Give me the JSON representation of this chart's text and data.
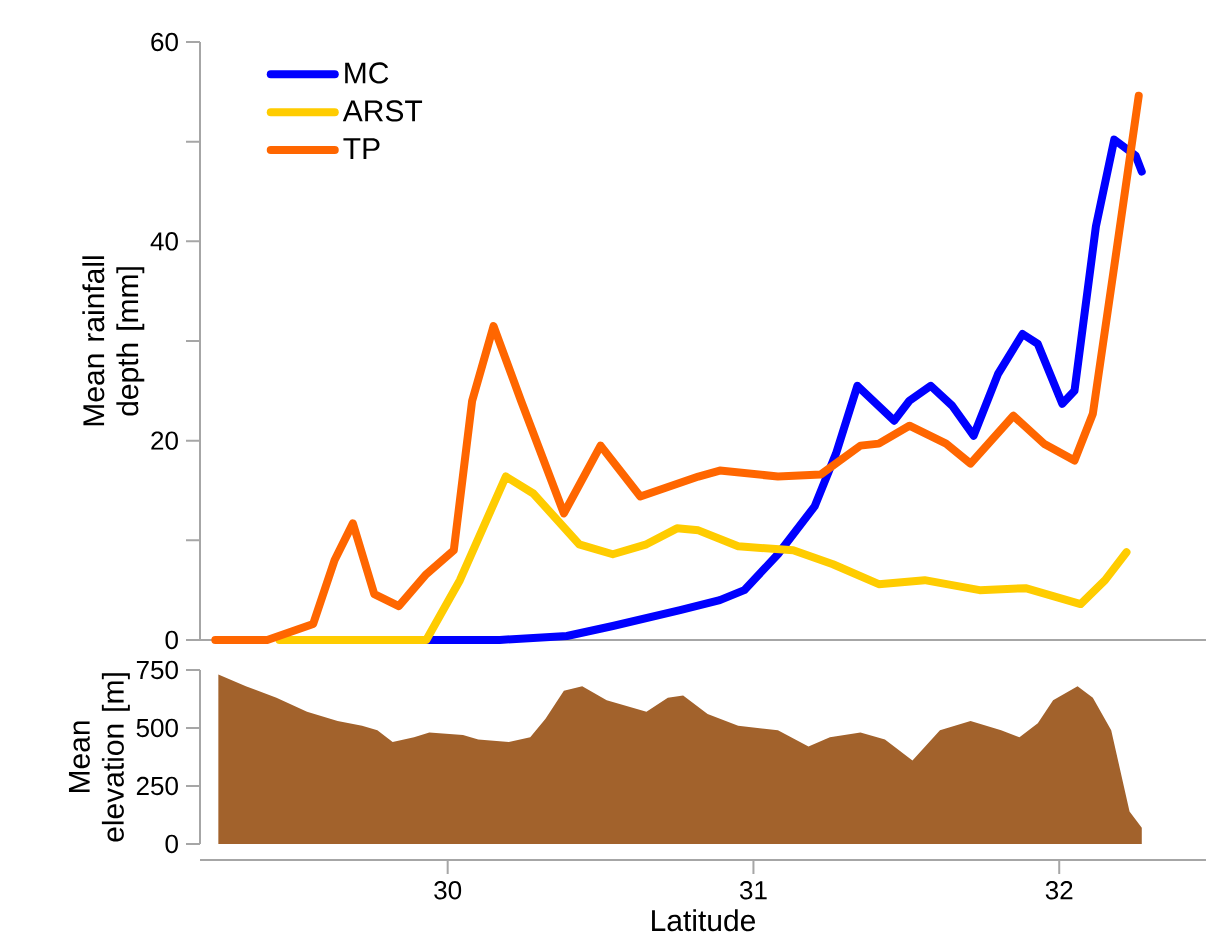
{
  "chart_data": [
    {
      "type": "line",
      "ylabel": "Mean rainfall depth [mm]",
      "xlim": [
        29.19,
        32.48
      ],
      "ylim": [
        0,
        60
      ],
      "yticks": [
        0,
        {
          "value": 10,
          "label": null
        },
        20,
        {
          "value": 30,
          "label": null
        },
        40,
        {
          "value": 50,
          "label": null
        },
        60
      ],
      "tick_labels": "y",
      "legend": "top left",
      "line_style": "solid",
      "series": [
        {
          "name": "MC",
          "color": "#0000ff",
          "x": [
            29.57,
            30.17,
            30.39,
            30.54,
            30.76,
            30.89,
            30.97,
            31.08,
            31.2,
            31.27,
            31.34,
            31.46,
            31.51,
            31.58,
            31.65,
            31.72,
            31.8,
            31.88,
            31.93,
            32.01,
            32.05,
            32.12,
            32.18,
            32.25,
            32.27
          ],
          "values": [
            0,
            0,
            0.4,
            1.4,
            3,
            4,
            5,
            8.6,
            13.4,
            18.7,
            25.5,
            22,
            24,
            25.5,
            23.5,
            20.5,
            26.7,
            30.7,
            29.7,
            23.7,
            25,
            41.5,
            50.2,
            48.6,
            47
          ]
        },
        {
          "name": "ARST",
          "color": "#ffcc00",
          "x": [
            29.45,
            29.93,
            30.04,
            30.19,
            30.28,
            30.43,
            30.54,
            30.65,
            30.75,
            30.82,
            30.95,
            31.13,
            31.26,
            31.41,
            31.56,
            31.74,
            31.89,
            32.07,
            32.15,
            32.22
          ],
          "values": [
            0,
            0,
            6,
            16.4,
            14.7,
            9.6,
            8.6,
            9.6,
            11.2,
            11,
            9.4,
            9,
            7.6,
            5.6,
            6,
            5,
            5.2,
            3.6,
            6,
            8.8
          ]
        },
        {
          "name": "TP",
          "color": "#ff6600",
          "x": [
            29.24,
            29.41,
            29.56,
            29.63,
            29.69,
            29.76,
            29.84,
            29.93,
            30.02,
            30.08,
            30.15,
            30.24,
            30.38,
            30.5,
            30.63,
            30.82,
            30.89,
            31.08,
            31.22,
            31.35,
            31.41,
            31.51,
            31.63,
            31.71,
            31.85,
            31.95,
            32.05,
            32.11,
            32.18,
            32.26
          ],
          "values": [
            0,
            0,
            1.6,
            8,
            11.7,
            4.6,
            3.4,
            6.6,
            9,
            24,
            31.5,
            24,
            12.7,
            19.5,
            14.4,
            16.4,
            17,
            16.4,
            16.6,
            19.5,
            19.7,
            21.5,
            19.7,
            17.7,
            22.5,
            19.7,
            18,
            22.7,
            37.5,
            54.6
          ]
        }
      ]
    },
    {
      "type": "area",
      "ylabel": "Mean elevation [m]",
      "xlabel": "Latitude",
      "xlim": [
        29.19,
        32.48
      ],
      "xticks": [
        30,
        31,
        32
      ],
      "ylim": [
        0,
        750
      ],
      "yticks": [
        0,
        250,
        500,
        750
      ],
      "color": "#a2622c",
      "x": [
        29.25,
        29.34,
        29.44,
        29.54,
        29.64,
        29.72,
        29.77,
        29.82,
        29.89,
        29.94,
        30.05,
        30.1,
        30.2,
        30.27,
        30.32,
        30.38,
        30.44,
        30.52,
        30.65,
        30.72,
        30.77,
        30.85,
        30.95,
        31.08,
        31.18,
        31.25,
        31.35,
        31.43,
        31.52,
        31.61,
        31.71,
        31.81,
        31.87,
        31.93,
        31.98,
        32.06,
        32.11,
        32.17,
        32.23,
        32.27
      ],
      "values": [
        730,
        680,
        630,
        570,
        530,
        510,
        490,
        440,
        460,
        480,
        470,
        450,
        440,
        460,
        540,
        660,
        680,
        620,
        570,
        630,
        640,
        560,
        510,
        490,
        420,
        460,
        480,
        450,
        360,
        490,
        530,
        490,
        460,
        520,
        620,
        680,
        630,
        490,
        140,
        70
      ]
    }
  ]
}
